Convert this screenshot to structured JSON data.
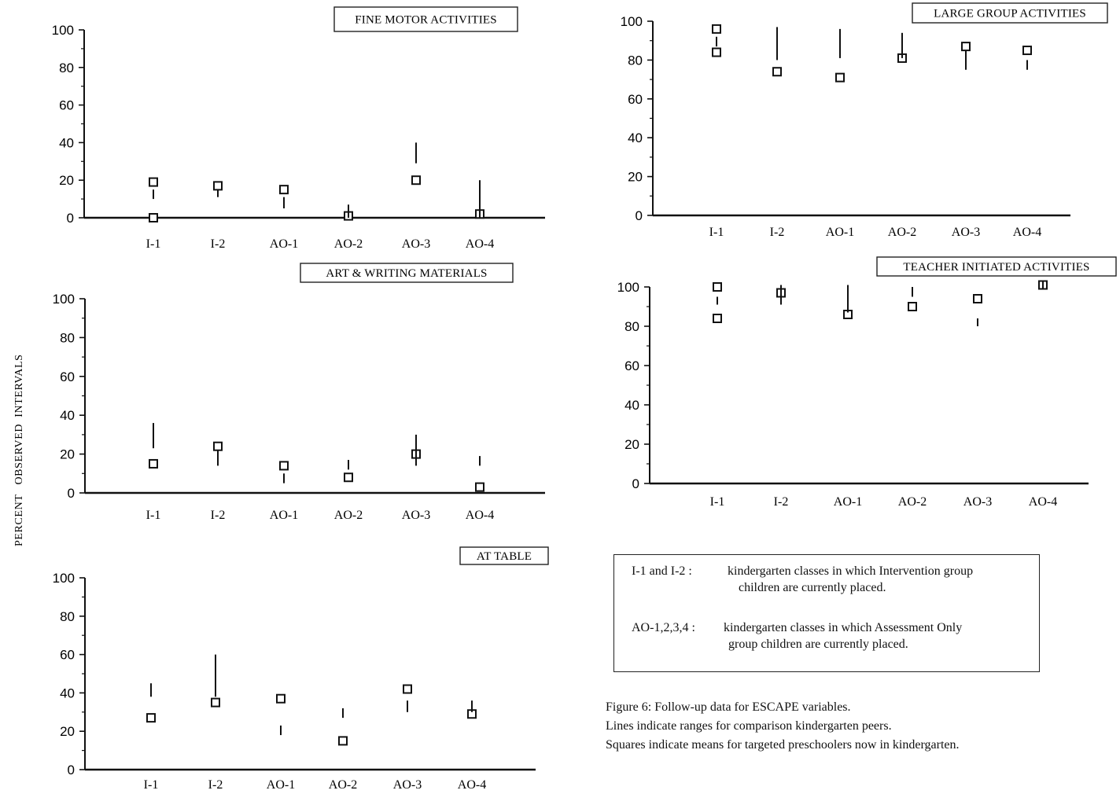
{
  "y_axis_label": "PERCENT   OBSERVED  INTERVALS",
  "chart_data": [
    {
      "type": "scatter",
      "title": "FINE MOTOR ACTIVITIES",
      "categories": [
        "I-1",
        "I-2",
        "AO-1",
        "AO-2",
        "AO-3",
        "AO-4"
      ],
      "ylim": [
        0,
        100
      ],
      "yticks": [
        0,
        20,
        40,
        60,
        80,
        100
      ],
      "series": [
        {
          "name": "Squares indicate means for targeted preschoolers now in kindergarten.",
          "marker": "square",
          "values": [
            [
              19,
              0
            ],
            17,
            15,
            1,
            20,
            2
          ]
        },
        {
          "name": "Lines indicate ranges for comparison kindergarten peers.",
          "marker": "range",
          "values": [
            [
              10,
              15
            ],
            [
              11,
              15
            ],
            [
              5,
              11
            ],
            [
              0,
              7
            ],
            [
              29,
              40
            ],
            [
              0,
              20
            ]
          ]
        }
      ]
    },
    {
      "type": "scatter",
      "title": "ART & WRITING MATERIALS",
      "categories": [
        "I-1",
        "I-2",
        "AO-1",
        "AO-2",
        "AO-3",
        "AO-4"
      ],
      "ylim": [
        0,
        100
      ],
      "yticks": [
        0,
        20,
        40,
        60,
        80,
        100
      ],
      "series": [
        {
          "name": "Squares indicate means for targeted preschoolers now in kindergarten.",
          "marker": "square",
          "values": [
            15,
            24,
            14,
            8,
            20,
            3
          ]
        },
        {
          "name": "Lines indicate ranges for comparison kindergarten peers.",
          "marker": "range",
          "values": [
            [
              23,
              36
            ],
            [
              14,
              22
            ],
            [
              5,
              10
            ],
            [
              12,
              17
            ],
            [
              14,
              30
            ],
            [
              14,
              19
            ]
          ]
        }
      ]
    },
    {
      "type": "scatter",
      "title": "AT TABLE",
      "categories": [
        "I-1",
        "I-2",
        "AO-1",
        "AO-2",
        "AO-3",
        "AO-4"
      ],
      "ylim": [
        0,
        100
      ],
      "yticks": [
        0,
        20,
        40,
        60,
        80,
        100
      ],
      "series": [
        {
          "name": "Squares indicate means for targeted preschoolers now in kindergarten.",
          "marker": "square",
          "values": [
            27,
            35,
            37,
            15,
            42,
            29
          ]
        },
        {
          "name": "Lines indicate ranges for comparison kindergarten peers.",
          "marker": "range",
          "values": [
            [
              38,
              45
            ],
            [
              38,
              60
            ],
            [
              18,
              23
            ],
            [
              27,
              32
            ],
            [
              30,
              36
            ],
            [
              30,
              36
            ]
          ]
        }
      ]
    },
    {
      "type": "scatter",
      "title": "LARGE GROUP ACTIVITIES",
      "categories": [
        "I-1",
        "I-2",
        "AO-1",
        "AO-2",
        "AO-3",
        "AO-4"
      ],
      "ylim": [
        0,
        100
      ],
      "yticks": [
        0,
        20,
        40,
        60,
        80,
        100
      ],
      "series": [
        {
          "name": "Squares indicate means for targeted preschoolers now in kindergarten.",
          "marker": "square",
          "values": [
            [
              96,
              84
            ],
            74,
            71,
            81,
            87,
            85
          ]
        },
        {
          "name": "Lines indicate ranges for comparison kindergarten peers.",
          "marker": "range",
          "values": [
            [
              87,
              92
            ],
            [
              80,
              97
            ],
            [
              81,
              96
            ],
            [
              81,
              94
            ],
            [
              75,
              85
            ],
            [
              75,
              80
            ]
          ]
        }
      ]
    },
    {
      "type": "scatter",
      "title": "TEACHER INITIATED ACTIVITIES",
      "categories": [
        "I-1",
        "I-2",
        "AO-1",
        "AO-2",
        "AO-3",
        "AO-4"
      ],
      "ylim": [
        0,
        100
      ],
      "yticks": [
        0,
        20,
        40,
        60,
        80,
        100
      ],
      "series": [
        {
          "name": "Squares indicate means for targeted preschoolers now in kindergarten.",
          "marker": "square",
          "values": [
            [
              100,
              84
            ],
            97,
            86,
            90,
            94,
            101
          ]
        },
        {
          "name": "Lines indicate ranges for comparison kindergarten peers.",
          "marker": "range",
          "values": [
            [
              91,
              95
            ],
            [
              91,
              101
            ],
            [
              87,
              101
            ],
            [
              95,
              100
            ],
            [
              80,
              84
            ],
            [
              99,
              103
            ]
          ]
        }
      ]
    }
  ],
  "legend": [
    {
      "key": "I-1 and I-2 :",
      "text": [
        "kindergarten classes in which Intervention group",
        "children are currently placed."
      ]
    },
    {
      "key": "AO-1,2,3,4 :",
      "text": [
        "kindergarten classes in which Assessment Only",
        "group children are currently placed."
      ]
    }
  ],
  "caption": [
    "Figure 6: Follow-up data for ESCAPE variables.",
    "Lines indicate ranges for comparison kindergarten peers.",
    "Squares indicate means for targeted preschoolers now in kindergarten."
  ]
}
